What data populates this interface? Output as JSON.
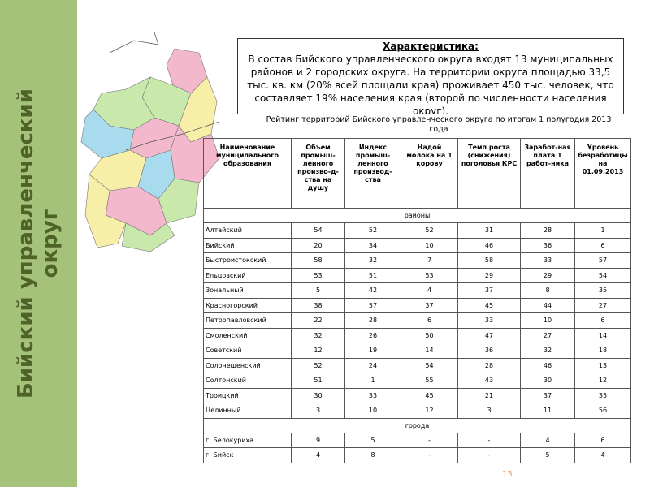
{
  "sidebar": {
    "title": "Бийский управленческий округ"
  },
  "box": {
    "title": "Характеристика:",
    "text": "В состав Бийского управленческого округа входят 13 муниципальных районов и 2 городских округа. На территории округа площадью 33,5 тыс. кв. км (20% всей площади края) проживает  450 тыс. человек, что составляет 19% населения края (второй по численности населения округ)."
  },
  "table": {
    "caption": "Рейтинг территорий  Бийского управленческого округа по итогам 1 полугодия 2013 года",
    "header": [
      "Наименование муниципального образования",
      "Объем промыш-ленного произво-д-ства на душу",
      "Индекс промыш-ленного производ-ства",
      "Надой молока на 1 корову",
      "Темп роста (снижения) поголовья КРС",
      "Заработ-ная плата 1 работ-ника",
      "Уровень безработицы на 01.09.2013"
    ],
    "sections": [
      {
        "name": "районы",
        "rows": [
          [
            "Алтайский",
            54,
            52,
            52,
            31,
            28,
            1
          ],
          [
            "Бийский",
            20,
            34,
            10,
            46,
            36,
            6
          ],
          [
            "Быстроистокский",
            58,
            32,
            7,
            58,
            33,
            57
          ],
          [
            "Ельцовский",
            53,
            51,
            53,
            29,
            29,
            54
          ],
          [
            "Зональный",
            5,
            42,
            4,
            37,
            8,
            35
          ],
          [
            "Красногорский",
            38,
            57,
            37,
            45,
            44,
            27
          ],
          [
            "Петропавловский",
            22,
            28,
            6,
            33,
            10,
            6
          ],
          [
            "Смоленский",
            32,
            26,
            50,
            47,
            27,
            14
          ],
          [
            "Советский",
            12,
            19,
            14,
            36,
            32,
            18
          ],
          [
            "Солонешенский",
            52,
            24,
            54,
            28,
            46,
            13
          ],
          [
            "Солтонский",
            51,
            1,
            55,
            43,
            30,
            12
          ],
          [
            "Троицкий",
            30,
            33,
            45,
            21,
            37,
            35
          ],
          [
            "Целинный",
            3,
            10,
            12,
            3,
            11,
            56
          ]
        ]
      },
      {
        "name": "города",
        "rows": [
          [
            "г. Белокуриха",
            9,
            5,
            "-",
            "-",
            4,
            6
          ],
          [
            "г. Бийск",
            4,
            8,
            "-",
            "-",
            5,
            4
          ]
        ]
      }
    ]
  },
  "page_number": "13"
}
